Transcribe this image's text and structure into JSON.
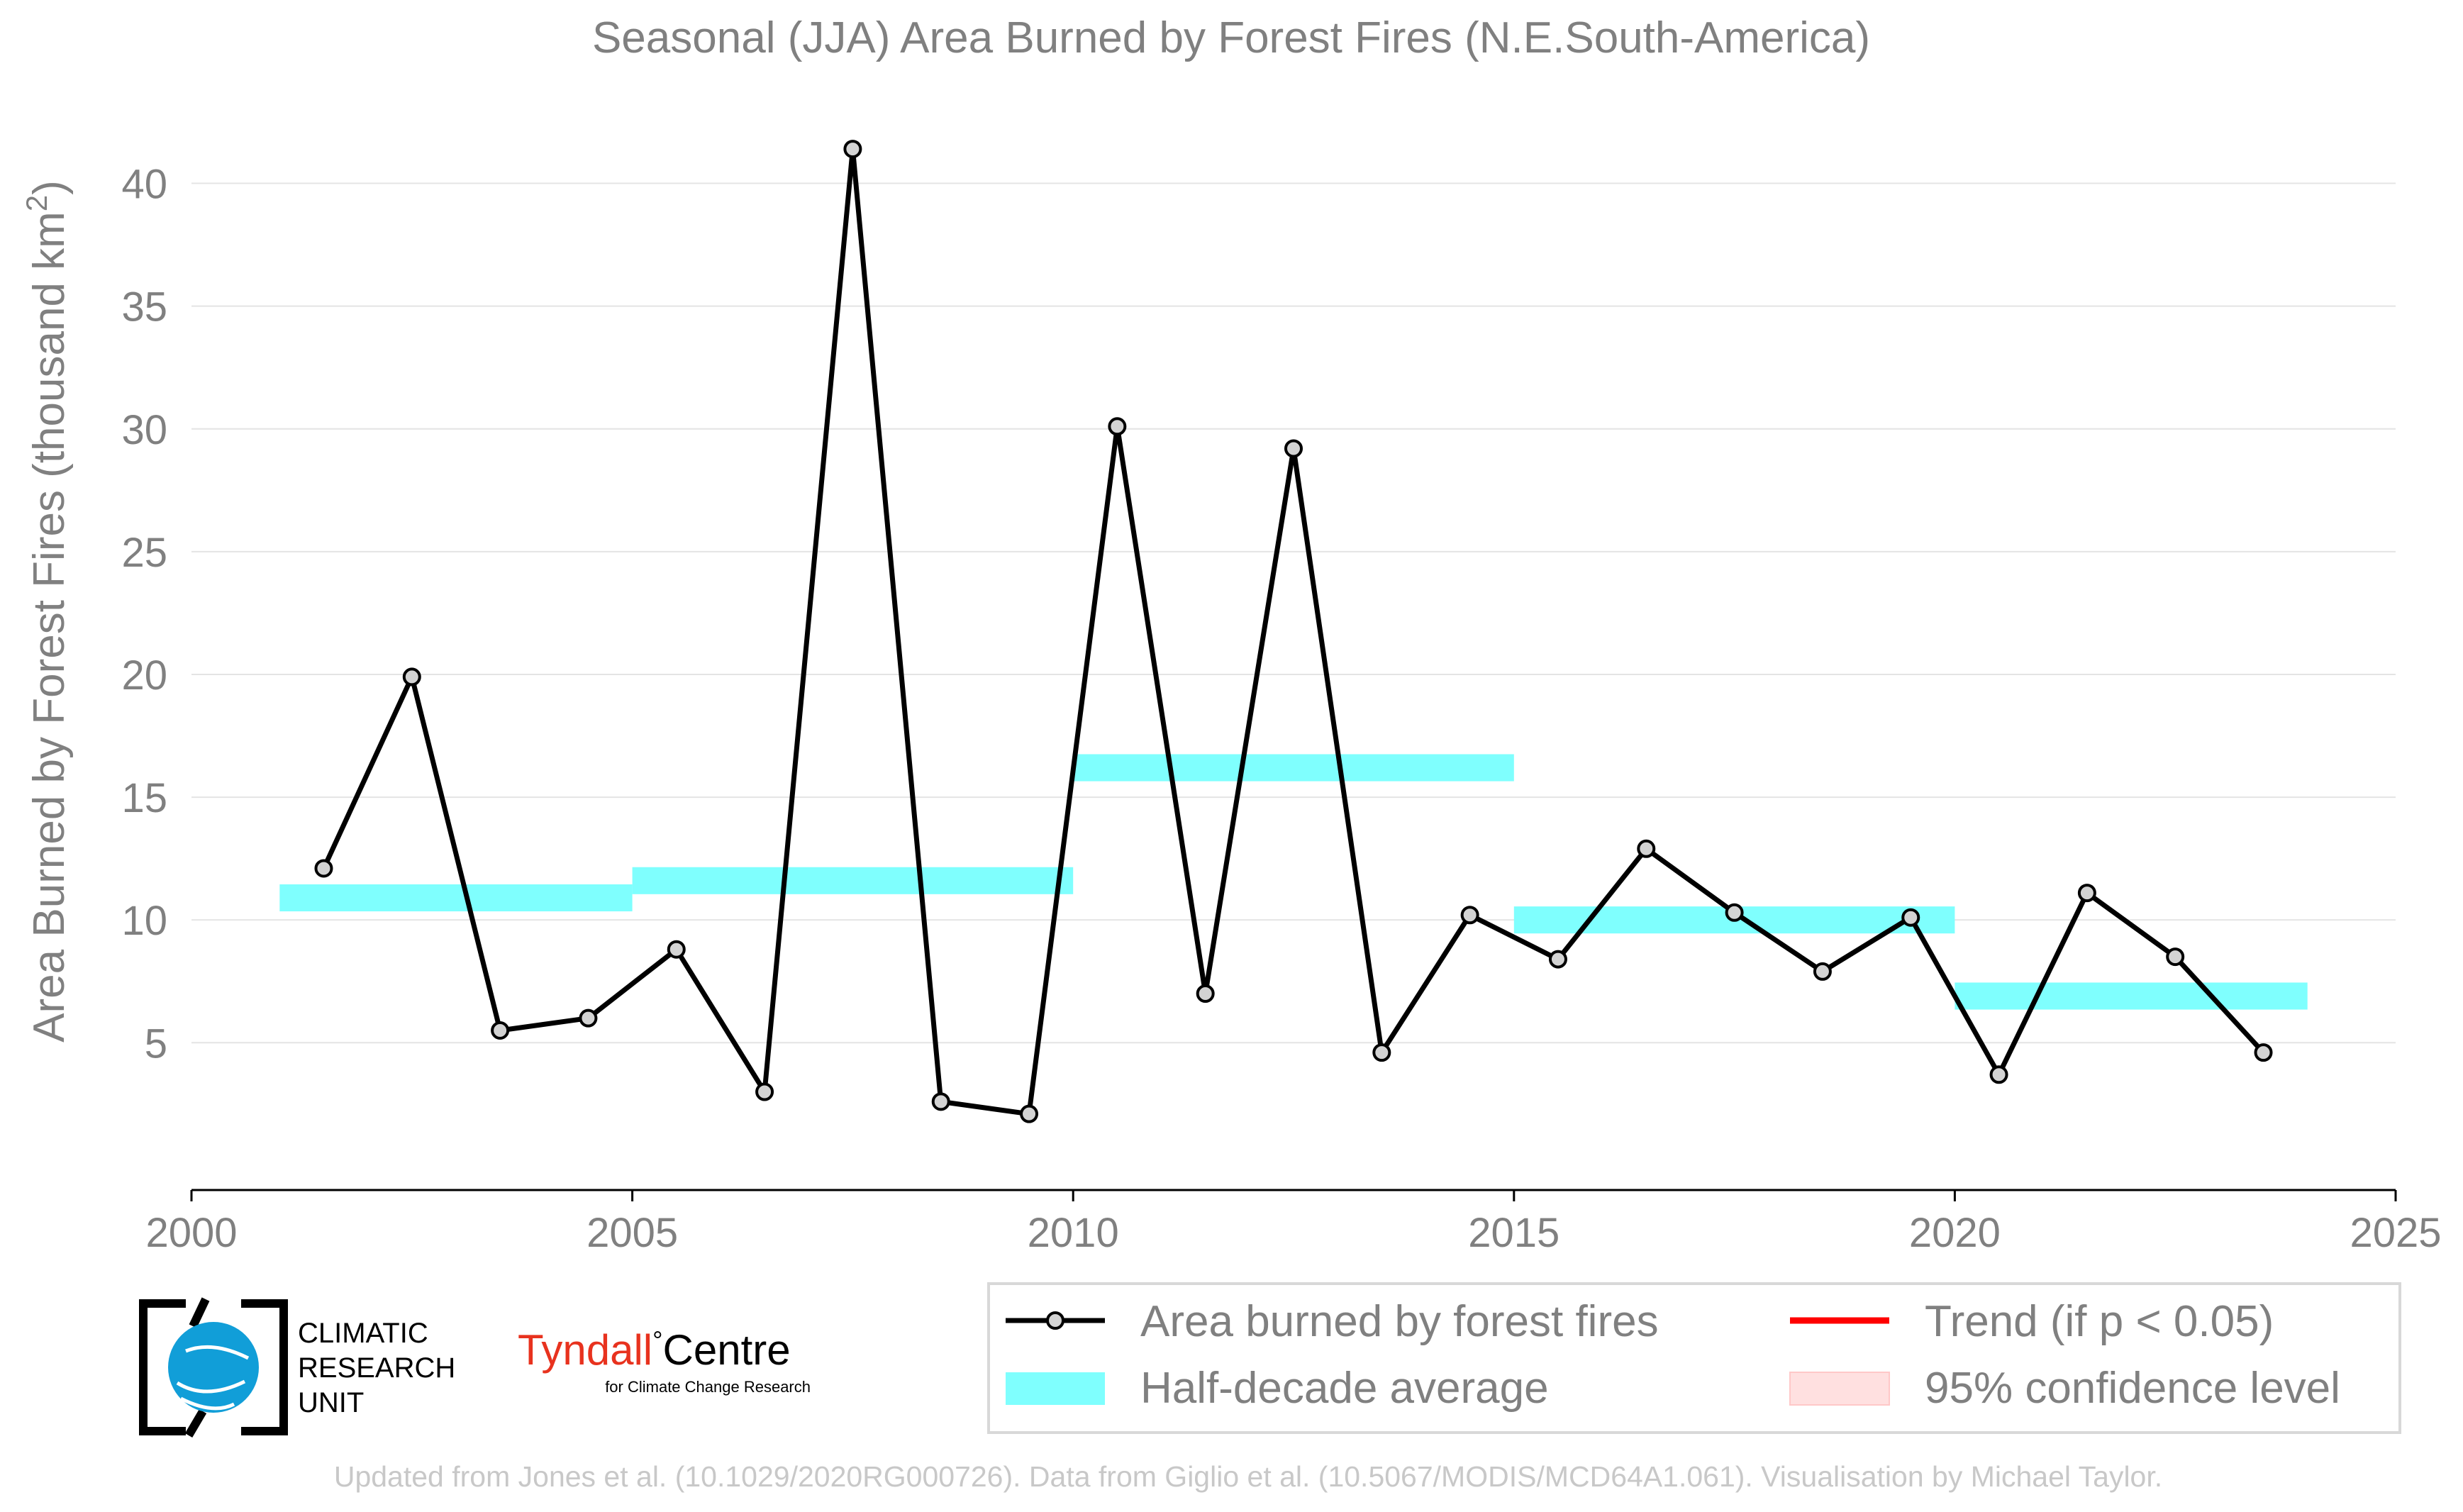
{
  "chart_data": {
    "type": "line",
    "title": "Seasonal (JJA) Area Burned by Forest Fires (N.E.South-America)",
    "xlabel": "",
    "ylabel": "Area Burned by Forest Fires (thousand km",
    "ylabel_superscript": "2",
    "ylabel_close": ")",
    "xlim": [
      2000,
      2025
    ],
    "ylim": [
      -1,
      42.5
    ],
    "x_ticks": [
      2000,
      2005,
      2010,
      2015,
      2020,
      2025
    ],
    "y_ticks": [
      5,
      10,
      15,
      20,
      25,
      30,
      35,
      40
    ],
    "grid": "horizontal",
    "series": [
      {
        "name": "Area burned by forest fires",
        "color": "#000000",
        "marker_fill": "#d3d3d3",
        "x": [
          2001.5,
          2002.5,
          2003.5,
          2004.5,
          2005.5,
          2006.5,
          2007.5,
          2008.5,
          2009.5,
          2010.5,
          2011.5,
          2012.5,
          2013.5,
          2014.5,
          2015.5,
          2016.5,
          2017.5,
          2018.5,
          2019.5,
          2020.5,
          2021.5,
          2022.5,
          2023.5
        ],
        "values": [
          12.1,
          19.9,
          5.5,
          6.0,
          8.8,
          3.0,
          41.4,
          2.6,
          2.1,
          30.1,
          7.0,
          29.2,
          4.6,
          10.2,
          8.4,
          12.9,
          10.3,
          7.9,
          10.1,
          3.7,
          11.1,
          8.5,
          4.6
        ]
      }
    ],
    "half_decade_average": {
      "name": "Half-decade average",
      "color": "#7ffffe",
      "segments": [
        {
          "x0": 2001,
          "x1": 2005,
          "value": 10.9
        },
        {
          "x0": 2005,
          "x1": 2010,
          "value": 11.6
        },
        {
          "x0": 2010,
          "x1": 2015,
          "value": 16.2
        },
        {
          "x0": 2015,
          "x1": 2020,
          "value": 10.0
        },
        {
          "x0": 2020,
          "x1": 2024,
          "value": 6.9
        }
      ]
    },
    "legend": {
      "placement": "bottom-right",
      "entries": [
        {
          "label": "Area burned by forest fires",
          "kind": "line-marker",
          "color": "#000000"
        },
        {
          "label": "Trend (if p < 0.05)",
          "kind": "line",
          "color": "#ff0000"
        },
        {
          "label": "Half-decade average",
          "kind": "patch",
          "color": "#7ffffe"
        },
        {
          "label": "95% confidence level",
          "kind": "patch",
          "color": "#ffe0e0"
        }
      ]
    }
  },
  "logos": {
    "cru_lines": [
      "CLIMATIC",
      "RESEARCH",
      "UNIT"
    ],
    "tyndall_name": "Tyndall",
    "tyndall_degree": "°",
    "tyndall_centre": "Centre",
    "tyndall_sub": "for Climate Change Research"
  },
  "credit": "Updated from Jones et al. (10.1029/2020RG000726). Data from Giglio et al. (10.5067/MODIS/MCD64A1.061). Visualisation by Michael Taylor."
}
